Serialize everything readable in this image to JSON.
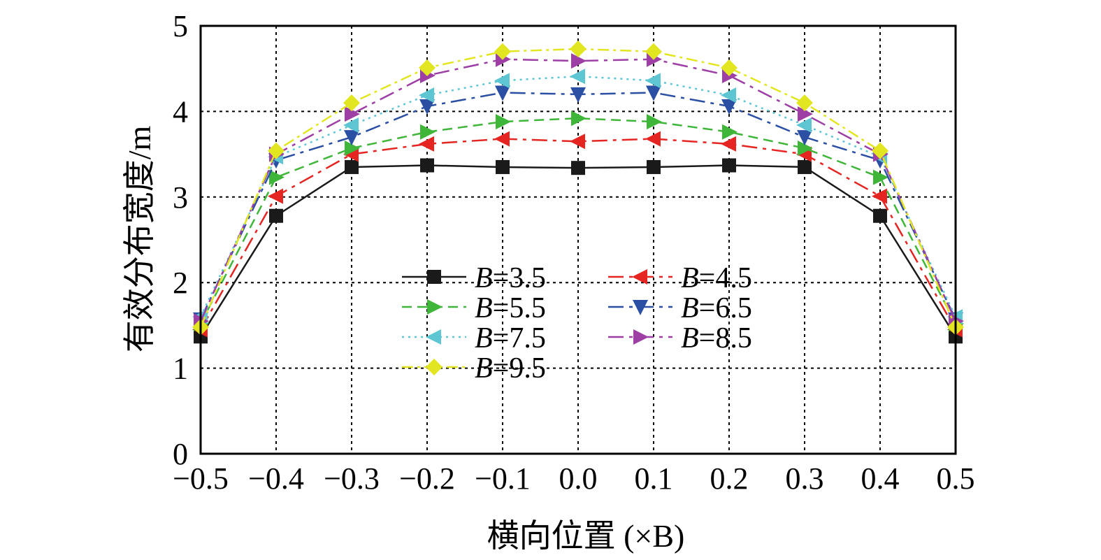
{
  "chart_data": {
    "type": "line",
    "xlabel": "横向位置 (×B)",
    "ylabel": "有效分布宽度/m",
    "xlim": [
      -0.5,
      0.5
    ],
    "ylim": [
      0,
      5
    ],
    "x": [
      -0.5,
      -0.4,
      -0.3,
      -0.2,
      -0.1,
      0.0,
      0.1,
      0.2,
      0.3,
      0.4,
      0.5
    ],
    "x_tick_labels": [
      "−0.5",
      "−0.4",
      "−0.3",
      "−0.2",
      "−0.1",
      "0.0",
      "0.1",
      "0.2",
      "0.3",
      "0.4",
      "0.5"
    ],
    "y_ticks": [
      0,
      1,
      2,
      3,
      4,
      5
    ],
    "y_tick_labels": [
      "0",
      "1",
      "2",
      "3",
      "4",
      "5"
    ],
    "grid": true,
    "legend_position": "center",
    "series": [
      {
        "name": "B=3.5",
        "label_var": "B",
        "label_val": "=3.5",
        "color": "#1a1a1a",
        "marker": "square",
        "dash": "",
        "values": [
          1.37,
          2.78,
          3.35,
          3.37,
          3.35,
          3.34,
          3.35,
          3.37,
          3.35,
          2.78,
          1.37
        ]
      },
      {
        "name": "B=4.5",
        "label_var": "B",
        "label_val": "=4.5",
        "color": "#e52521",
        "marker": "triangle-left",
        "dash": "22,8,5,8",
        "values": [
          1.45,
          3.01,
          3.5,
          3.62,
          3.68,
          3.65,
          3.68,
          3.62,
          3.5,
          3.01,
          1.45
        ]
      },
      {
        "name": "B=5.5",
        "label_var": "B",
        "label_val": "=5.5",
        "color": "#3fb63a",
        "marker": "triangle-right",
        "dash": "14,8",
        "values": [
          1.52,
          3.23,
          3.57,
          3.76,
          3.88,
          3.92,
          3.88,
          3.76,
          3.57,
          3.23,
          1.52
        ]
      },
      {
        "name": "B=6.5",
        "label_var": "B",
        "label_val": "=6.5",
        "color": "#2b4fa3",
        "marker": "triangle-down",
        "dash": "22,8,5,8",
        "values": [
          1.57,
          3.43,
          3.7,
          4.06,
          4.22,
          4.2,
          4.22,
          4.06,
          3.7,
          3.43,
          1.57
        ]
      },
      {
        "name": "B=7.5",
        "label_var": "B",
        "label_val": "=7.5",
        "color": "#5ec6d2",
        "marker": "triangle-left",
        "dash": "3,6",
        "values": [
          1.6,
          3.47,
          3.84,
          4.19,
          4.36,
          4.41,
          4.36,
          4.19,
          3.84,
          3.47,
          1.6
        ]
      },
      {
        "name": "B=8.5",
        "label_var": "B",
        "label_val": "=8.5",
        "color": "#9d3fa5",
        "marker": "triangle-right",
        "dash": "22,8,5,8",
        "values": [
          1.55,
          3.5,
          3.97,
          4.42,
          4.61,
          4.59,
          4.61,
          4.42,
          3.97,
          3.5,
          1.55
        ]
      },
      {
        "name": "B=9.5",
        "label_var": "B",
        "label_val": "=9.5",
        "color": "#e2e620",
        "marker": "diamond",
        "dash": "16,6,4,6",
        "values": [
          1.48,
          3.54,
          4.1,
          4.51,
          4.7,
          4.73,
          4.7,
          4.51,
          4.1,
          3.54,
          1.48
        ]
      }
    ]
  }
}
